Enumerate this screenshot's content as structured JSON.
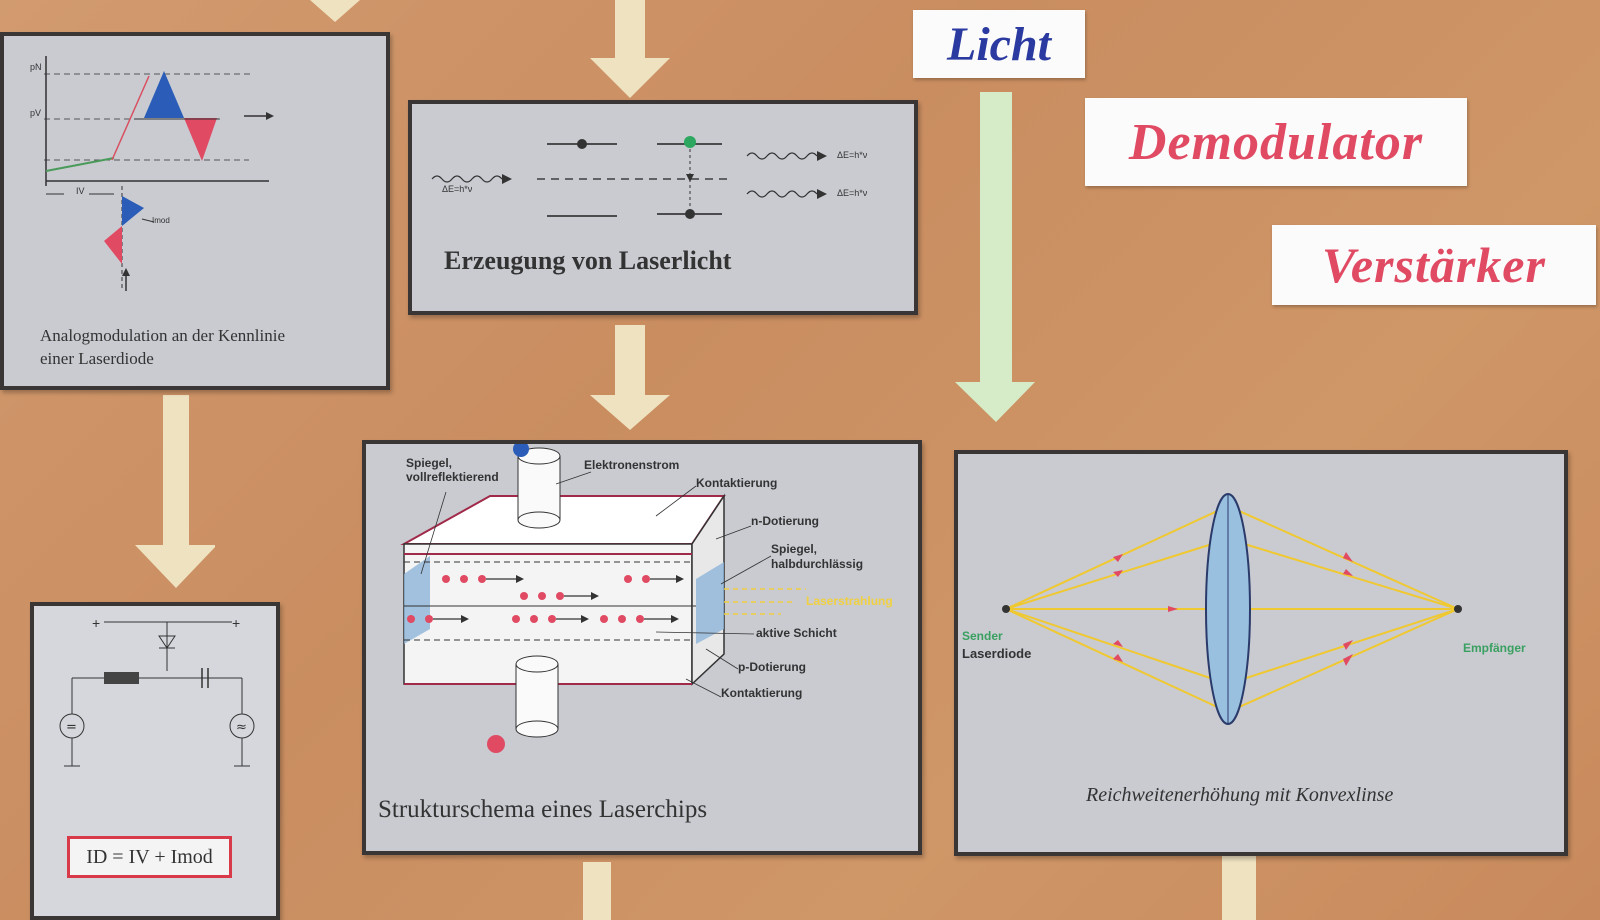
{
  "labels": {
    "licht": "Licht",
    "demodulator": "Demodulator",
    "verstaerker": "Verstärker"
  },
  "panels": {
    "analog": {
      "caption_line1": "Analogmodulation an der Kennlinie",
      "caption_line2": "einer Laserdiode",
      "axis_pn": "pN",
      "axis_pv": "pV",
      "axis_iv": "IV",
      "axis_imod": "Imod"
    },
    "laserlicht": {
      "caption": "Erzeugung von Laserlicht",
      "energy_in": "ΔE=h*ν",
      "energy_out1": "ΔE=h*ν",
      "energy_out2": "ΔE=h*ν"
    },
    "circuit": {
      "formula": "ID = IV + Imod"
    },
    "laserchip": {
      "caption": "Strukturschema eines Laserchips",
      "mirror_full": "Spiegel, vollreflektierend",
      "electron_flow": "Elektronenstrom",
      "contact_top": "Kontaktierung",
      "n_doping": "n-Dotierung",
      "mirror_half": "Spiegel, halbdurchlässig",
      "laser_beam": "Laserstrahlung",
      "active_layer": "aktive Schicht",
      "p_doping": "p-Dotierung",
      "contact_bottom": "Kontaktierung"
    },
    "lens": {
      "caption": "Reichweitenerhöhung mit Konvexlinse",
      "sender": "Sender",
      "laserdiode": "Laserdiode",
      "receiver": "Empfänger"
    }
  },
  "colors": {
    "paper": "#cf9667",
    "arrow_cream": "#efe2c0",
    "arrow_green": "#d6ecc8",
    "label_red": "#e04a63",
    "label_blue": "#2a3aa0",
    "panel_gray": "#c9cbd1",
    "beam_yellow": "#f0d040"
  }
}
